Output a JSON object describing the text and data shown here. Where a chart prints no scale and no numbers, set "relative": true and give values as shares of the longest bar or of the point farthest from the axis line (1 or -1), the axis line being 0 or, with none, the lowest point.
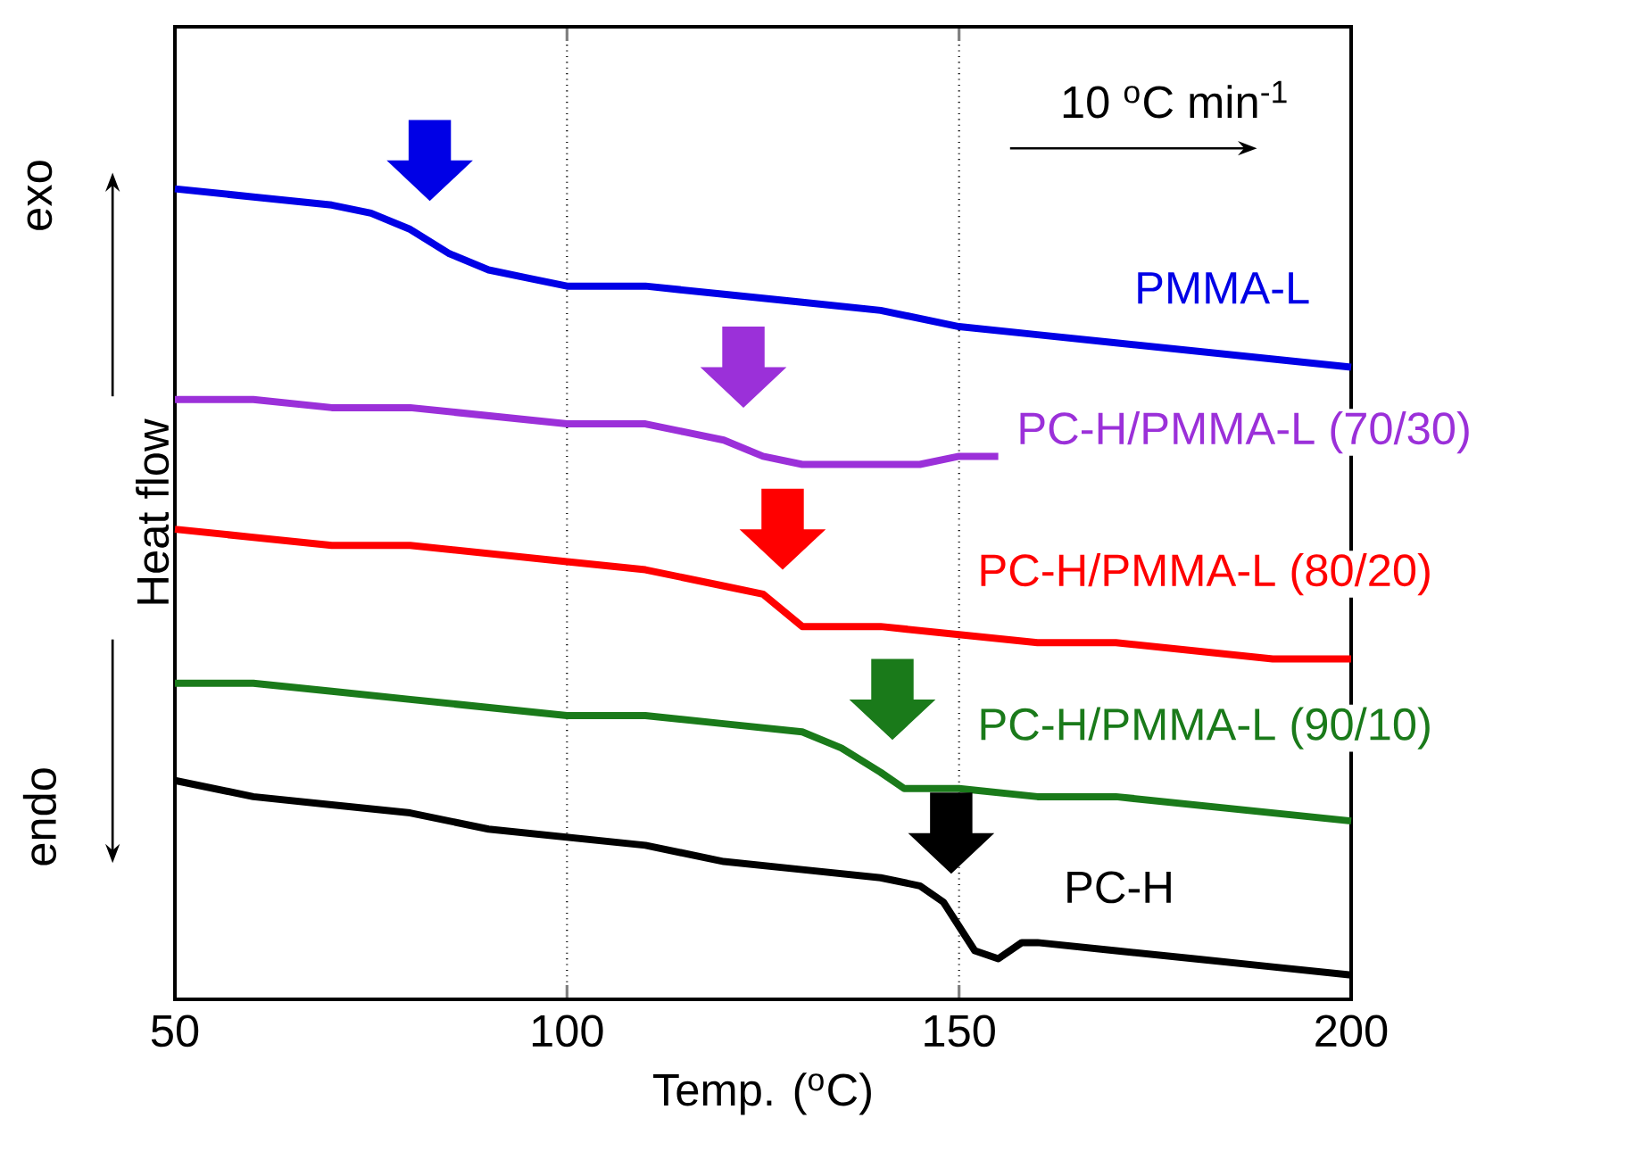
{
  "chart_data": {
    "type": "line",
    "relative": true,
    "xlabel": "Temp. ($^{o}$C)",
    "ylabel": "Heat flow",
    "annotations": [
      "10 $^{o}$C min$^{-1}$",
      "exo",
      "endo"
    ],
    "xlim": [
      50,
      200
    ],
    "xticks": [
      50,
      100,
      150,
      200
    ],
    "grid": "x",
    "legend": "right",
    "marker": "none",
    "line_style": "solid",
    "series": [
      {
        "name": "PMMA-L",
        "color": "#0000e6",
        "x": [
          50,
          60,
          70,
          75,
          80,
          85,
          90,
          95,
          100,
          110,
          120,
          130,
          140,
          150,
          160,
          170,
          180,
          190,
          200
        ],
        "values": [
          1.0,
          0.99,
          0.98,
          0.97,
          0.95,
          0.92,
          0.9,
          0.89,
          0.88,
          0.88,
          0.87,
          0.86,
          0.85,
          0.83,
          0.82,
          0.81,
          0.8,
          0.79,
          0.78
        ]
      },
      {
        "name": "PC-H/PMMA-L (70/30)",
        "color": "#9b30d9",
        "x": [
          50,
          60,
          70,
          80,
          90,
          100,
          110,
          115,
          120,
          125,
          130,
          135,
          140,
          145,
          150,
          155
        ],
        "values": [
          0.74,
          0.74,
          0.73,
          0.73,
          0.72,
          0.71,
          0.71,
          0.7,
          0.69,
          0.67,
          0.66,
          0.66,
          0.66,
          0.66,
          0.67,
          0.67
        ]
      },
      {
        "name": "PC-H/PMMA-L (80/20)",
        "color": "#ff0000",
        "x": [
          50,
          60,
          70,
          80,
          90,
          100,
          110,
          120,
          125,
          130,
          133,
          140,
          150,
          160,
          170,
          180,
          190,
          200
        ],
        "values": [
          0.58,
          0.57,
          0.56,
          0.56,
          0.55,
          0.54,
          0.53,
          0.51,
          0.5,
          0.46,
          0.46,
          0.46,
          0.45,
          0.44,
          0.44,
          0.43,
          0.42,
          0.42
        ]
      },
      {
        "name": "PC-H/PMMA-L (90/10)",
        "color": "#1a7a1a",
        "x": [
          50,
          60,
          70,
          80,
          90,
          100,
          110,
          120,
          130,
          135,
          140,
          143,
          150,
          160,
          170,
          180,
          190,
          200
        ],
        "values": [
          0.39,
          0.39,
          0.38,
          0.37,
          0.36,
          0.35,
          0.35,
          0.34,
          0.33,
          0.31,
          0.28,
          0.26,
          0.26,
          0.25,
          0.25,
          0.24,
          0.23,
          0.22
        ]
      },
      {
        "name": "PC-H",
        "color": "#000000",
        "x": [
          50,
          60,
          70,
          80,
          90,
          100,
          110,
          120,
          130,
          140,
          145,
          148,
          150,
          152,
          155,
          158,
          160,
          170,
          180,
          190,
          200
        ],
        "values": [
          0.27,
          0.25,
          0.24,
          0.23,
          0.21,
          0.2,
          0.19,
          0.17,
          0.16,
          0.15,
          0.14,
          0.12,
          0.09,
          0.06,
          0.05,
          0.07,
          0.07,
          0.06,
          0.05,
          0.04,
          0.03
        ]
      }
    ]
  }
}
